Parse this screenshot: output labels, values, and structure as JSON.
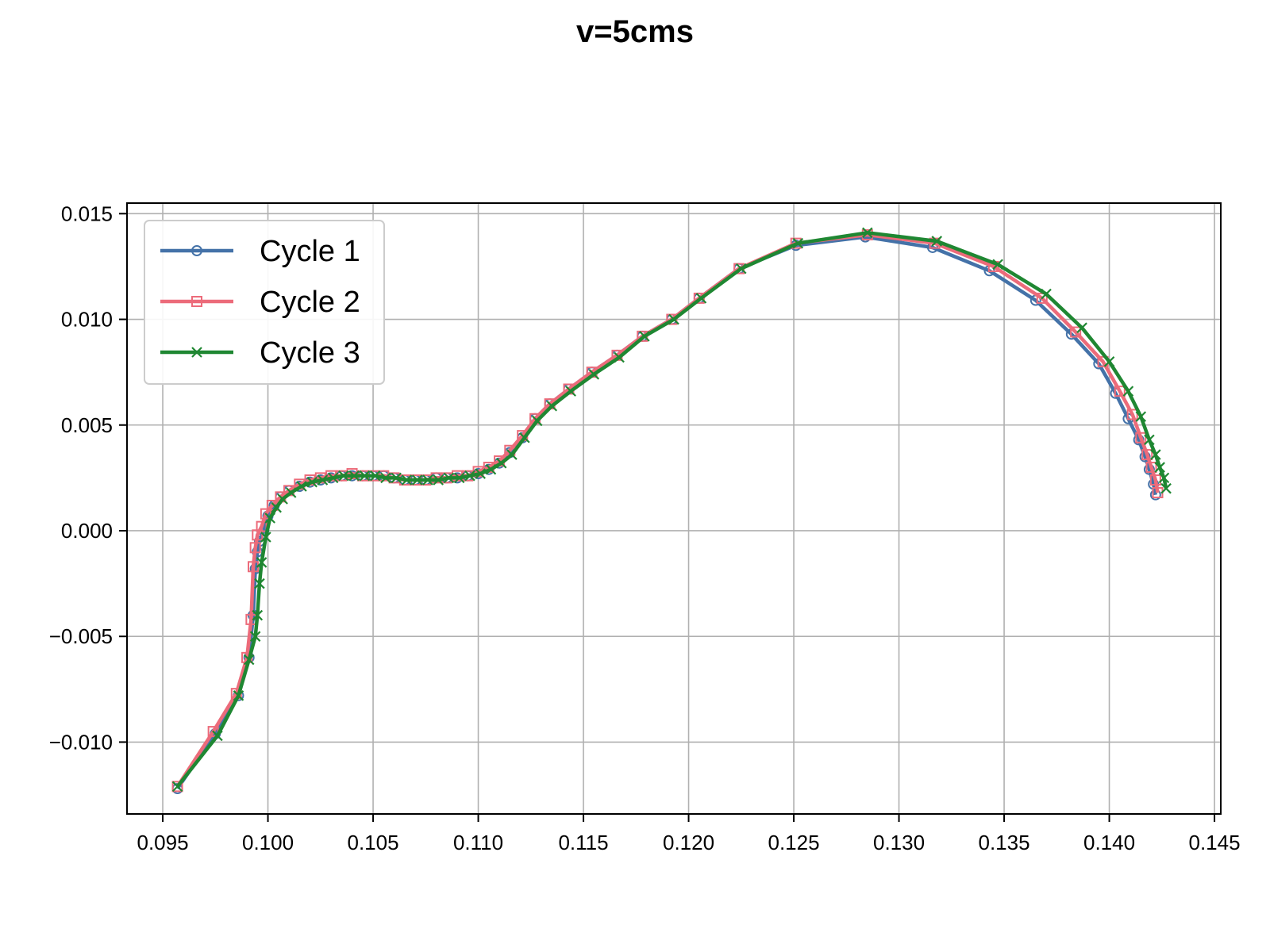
{
  "chart_data": {
    "type": "line",
    "title": "v=5cms",
    "xlabel": "",
    "ylabel": "",
    "xlim": [
      0.0933,
      0.1453
    ],
    "ylim": [
      -0.0134,
      0.0155
    ],
    "xticks": [
      0.095,
      0.1,
      0.105,
      0.11,
      0.115,
      0.12,
      0.125,
      0.13,
      0.135,
      0.14,
      0.145
    ],
    "xtick_labels": [
      "0.095",
      "0.100",
      "0.105",
      "0.110",
      "0.115",
      "0.120",
      "0.125",
      "0.130",
      "0.135",
      "0.140",
      "0.145"
    ],
    "yticks": [
      -0.01,
      -0.005,
      0.0,
      0.005,
      0.01,
      0.015
    ],
    "ytick_labels": [
      "−0.010",
      "−0.005",
      "0.000",
      "0.005",
      "0.010",
      "0.015"
    ],
    "grid": true,
    "legend": {
      "position": "top-left"
    },
    "series": [
      {
        "name": "Cycle 1",
        "color": "#4472a8",
        "marker": "circle",
        "x": [
          0.0957,
          0.0975,
          0.0986,
          0.0991,
          0.0993,
          0.0994,
          0.0995,
          0.0996,
          0.0998,
          0.1,
          0.1003,
          0.1006,
          0.101,
          0.1015,
          0.102,
          0.1025,
          0.103,
          0.1035,
          0.104,
          0.1045,
          0.105,
          0.1055,
          0.106,
          0.1065,
          0.107,
          0.1075,
          0.108,
          0.1085,
          0.109,
          0.1095,
          0.11,
          0.1105,
          0.111,
          0.1115,
          0.1121,
          0.1127,
          0.1134,
          0.1143,
          0.1154,
          0.1166,
          0.1178,
          0.1192,
          0.1205,
          0.1224,
          0.1251,
          0.1284,
          0.1316,
          0.1343,
          0.1365,
          0.1382,
          0.1395,
          0.1403,
          0.1409,
          0.1414,
          0.1417,
          0.1419,
          0.1421,
          0.1422
        ],
        "y": [
          -0.0122,
          -0.0096,
          -0.0078,
          -0.006,
          -0.004,
          -0.0018,
          -0.001,
          -0.0005,
          0.0,
          0.0007,
          0.0012,
          0.0016,
          0.0019,
          0.0021,
          0.0023,
          0.0024,
          0.0025,
          0.0026,
          0.0026,
          0.0026,
          0.0026,
          0.0026,
          0.0025,
          0.0024,
          0.0024,
          0.0024,
          0.0025,
          0.0025,
          0.0025,
          0.0026,
          0.0027,
          0.0029,
          0.0032,
          0.0037,
          0.0044,
          0.0053,
          0.006,
          0.0067,
          0.0075,
          0.0083,
          0.0092,
          0.01,
          0.011,
          0.0124,
          0.0135,
          0.0139,
          0.0134,
          0.0123,
          0.0109,
          0.0093,
          0.0079,
          0.0065,
          0.0053,
          0.0043,
          0.0035,
          0.0029,
          0.0022,
          0.0017
        ]
      },
      {
        "name": "Cycle 2",
        "color": "#ec6b7a",
        "marker": "square",
        "x": [
          0.0957,
          0.0974,
          0.0985,
          0.099,
          0.0992,
          0.0993,
          0.0994,
          0.0995,
          0.0997,
          0.0999,
          0.1002,
          0.1006,
          0.101,
          0.1015,
          0.102,
          0.1025,
          0.103,
          0.1035,
          0.104,
          0.1045,
          0.105,
          0.1055,
          0.106,
          0.1065,
          0.107,
          0.1075,
          0.108,
          0.1085,
          0.109,
          0.1095,
          0.11,
          0.1105,
          0.111,
          0.1115,
          0.1121,
          0.1127,
          0.1134,
          0.1143,
          0.1154,
          0.1166,
          0.1178,
          0.1192,
          0.1205,
          0.1224,
          0.1251,
          0.1285,
          0.1317,
          0.1345,
          0.1368,
          0.1384,
          0.1397,
          0.1405,
          0.1411,
          0.1415,
          0.1418,
          0.142,
          0.1422,
          0.1423
        ],
        "y": [
          -0.0121,
          -0.0095,
          -0.0077,
          -0.006,
          -0.0042,
          -0.0017,
          -0.0008,
          -0.0002,
          0.0002,
          0.0008,
          0.0012,
          0.0016,
          0.0019,
          0.0022,
          0.0024,
          0.0025,
          0.0026,
          0.0026,
          0.0027,
          0.0026,
          0.0026,
          0.0026,
          0.0025,
          0.0024,
          0.0024,
          0.0024,
          0.0025,
          0.0025,
          0.0026,
          0.0026,
          0.0028,
          0.003,
          0.0033,
          0.0038,
          0.0045,
          0.0053,
          0.006,
          0.0067,
          0.0075,
          0.0083,
          0.0092,
          0.01,
          0.011,
          0.0124,
          0.0136,
          0.014,
          0.0136,
          0.0125,
          0.011,
          0.0094,
          0.008,
          0.0066,
          0.0055,
          0.0044,
          0.0036,
          0.003,
          0.0024,
          0.0018
        ]
      },
      {
        "name": "Cycle 3",
        "color": "#1f8732",
        "marker": "x",
        "x": [
          0.0957,
          0.0976,
          0.0986,
          0.0991,
          0.0994,
          0.0995,
          0.0996,
          0.0997,
          0.0999,
          0.1001,
          0.1004,
          0.1007,
          0.1011,
          0.1016,
          0.1021,
          0.1026,
          0.1031,
          0.1036,
          0.1041,
          0.1046,
          0.1051,
          0.1056,
          0.1061,
          0.1066,
          0.1071,
          0.1076,
          0.1081,
          0.1086,
          0.1091,
          0.1096,
          0.1101,
          0.1106,
          0.1111,
          0.1116,
          0.1122,
          0.1128,
          0.1135,
          0.1144,
          0.1155,
          0.1167,
          0.1179,
          0.1193,
          0.1206,
          0.1225,
          0.1252,
          0.1285,
          0.1318,
          0.1347,
          0.137,
          0.1387,
          0.14,
          0.1409,
          0.1415,
          0.1419,
          0.1422,
          0.1424,
          0.1426,
          0.1427
        ],
        "y": [
          -0.0121,
          -0.0097,
          -0.0078,
          -0.0061,
          -0.005,
          -0.004,
          -0.0025,
          -0.0015,
          -0.0003,
          0.0006,
          0.0011,
          0.0015,
          0.0018,
          0.0021,
          0.0023,
          0.0024,
          0.0025,
          0.0026,
          0.0026,
          0.0026,
          0.0026,
          0.0025,
          0.0025,
          0.0024,
          0.0024,
          0.0024,
          0.0024,
          0.0025,
          0.0025,
          0.0026,
          0.0027,
          0.0029,
          0.0032,
          0.0036,
          0.0044,
          0.0052,
          0.0059,
          0.0066,
          0.0074,
          0.0082,
          0.0092,
          0.01,
          0.011,
          0.0124,
          0.0136,
          0.0141,
          0.0137,
          0.0126,
          0.0112,
          0.0096,
          0.008,
          0.0066,
          0.0054,
          0.0043,
          0.0036,
          0.003,
          0.0025,
          0.002
        ]
      }
    ]
  }
}
